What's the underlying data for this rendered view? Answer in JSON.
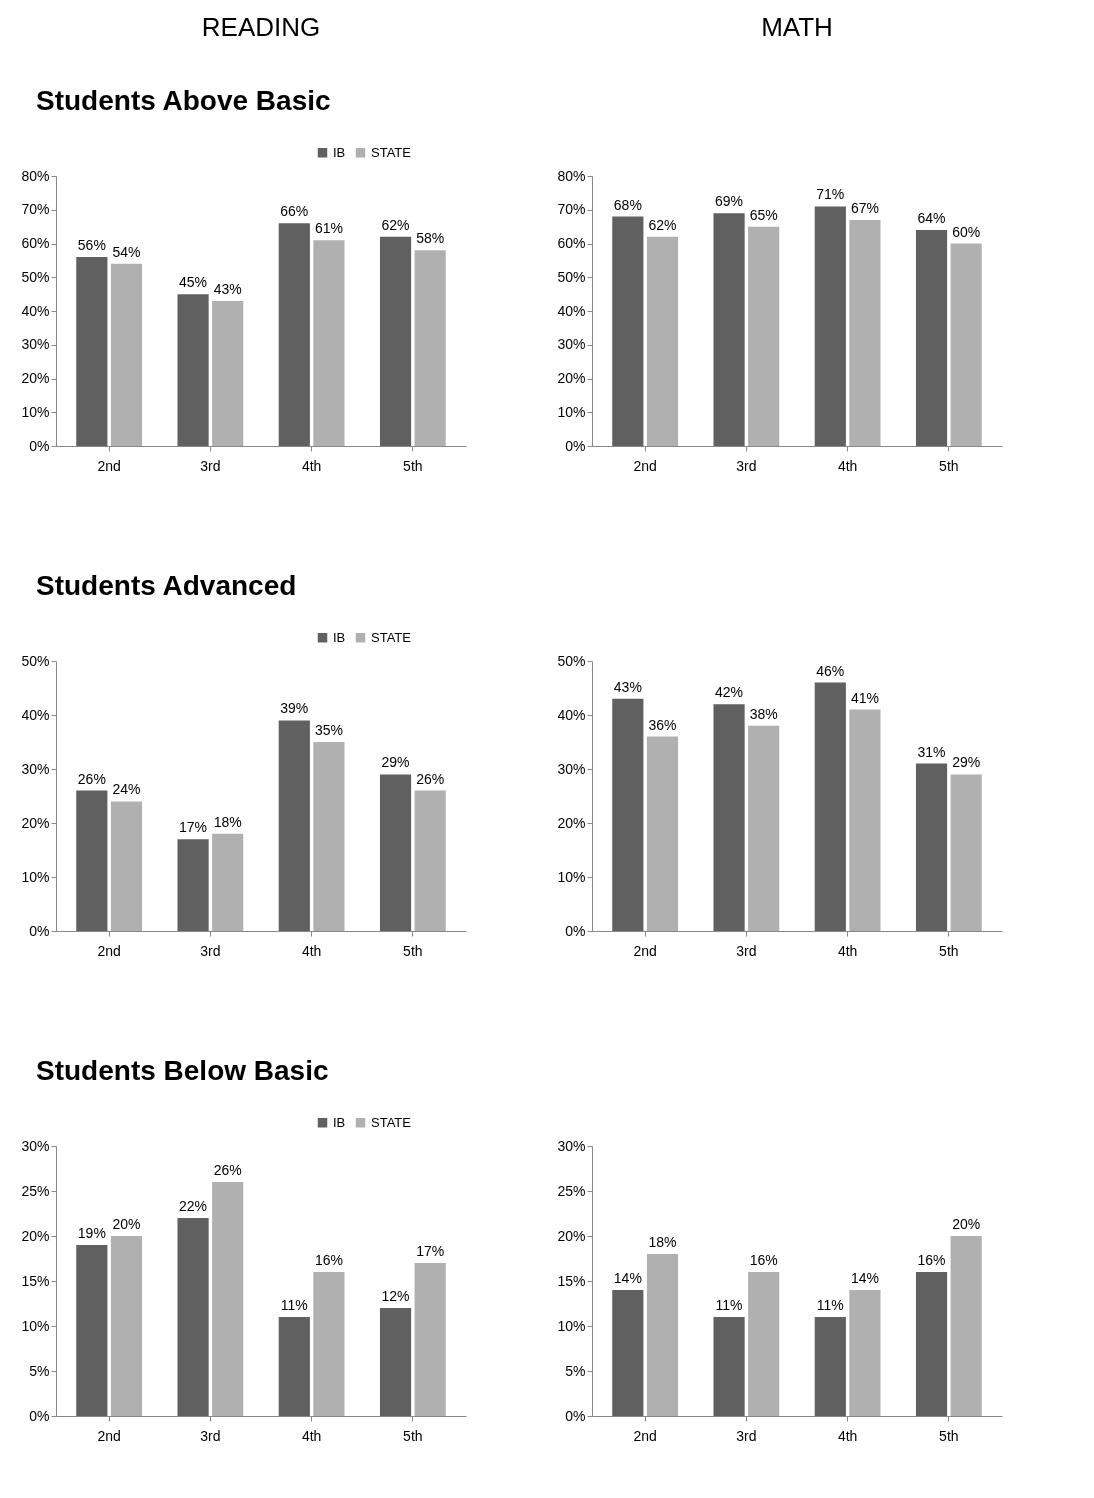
{
  "chart_data": [
    {
      "type": "bar",
      "title": "Students Above Basic",
      "annotations": [
        "READING"
      ],
      "categories": [
        "2nd",
        "3rd",
        "4th",
        "5th"
      ],
      "legend": "top right",
      "grid": false,
      "ylim": [
        0,
        80
      ],
      "yticks": [
        {
          "value": 0,
          "label": "0%"
        },
        {
          "value": 10,
          "label": "10%"
        },
        {
          "value": 20,
          "label": "20%"
        },
        {
          "value": 30,
          "label": "30%"
        },
        {
          "value": 40,
          "label": "40%"
        },
        {
          "value": 50,
          "label": "50%"
        },
        {
          "value": 60,
          "label": "60%"
        },
        {
          "value": 70,
          "label": "70%"
        },
        {
          "value": 80,
          "label": "80%"
        }
      ],
      "series": [
        {
          "name": "IB",
          "color": "#606060",
          "values": [
            56,
            45,
            66,
            62
          ],
          "value_labels": [
            "56%",
            "45%",
            "66%",
            "62%"
          ]
        },
        {
          "name": "STATE",
          "color": "#b0b0b0",
          "values": [
            54,
            43,
            61,
            58
          ],
          "value_labels": [
            "54%",
            "43%",
            "61%",
            "58%"
          ]
        }
      ]
    },
    {
      "type": "bar",
      "annotations": [
        "MATH"
      ],
      "categories": [
        "2nd",
        "3rd",
        "4th",
        "5th"
      ],
      "grid": false,
      "ylim": [
        0,
        80
      ],
      "yticks": [
        {
          "value": 0,
          "label": "0%"
        },
        {
          "value": 10,
          "label": "10%"
        },
        {
          "value": 20,
          "label": "20%"
        },
        {
          "value": 30,
          "label": "30%"
        },
        {
          "value": 40,
          "label": "40%"
        },
        {
          "value": 50,
          "label": "50%"
        },
        {
          "value": 60,
          "label": "60%"
        },
        {
          "value": 70,
          "label": "70%"
        },
        {
          "value": 80,
          "label": "80%"
        }
      ],
      "series": [
        {
          "color": "#606060",
          "values": [
            68,
            69,
            71,
            64
          ],
          "value_labels": [
            "68%",
            "69%",
            "71%",
            "64%"
          ]
        },
        {
          "color": "#b0b0b0",
          "values": [
            62,
            65,
            67,
            60
          ],
          "value_labels": [
            "62%",
            "65%",
            "67%",
            "60%"
          ]
        }
      ]
    },
    {
      "type": "bar",
      "title": "Students Advanced",
      "categories": [
        "2nd",
        "3rd",
        "4th",
        "5th"
      ],
      "legend": "top right",
      "grid": false,
      "ylim": [
        0,
        50
      ],
      "yticks": [
        {
          "value": 0,
          "label": "0%"
        },
        {
          "value": 10,
          "label": "10%"
        },
        {
          "value": 20,
          "label": "20%"
        },
        {
          "value": 30,
          "label": "30%"
        },
        {
          "value": 40,
          "label": "40%"
        },
        {
          "value": 50,
          "label": "50%"
        }
      ],
      "series": [
        {
          "name": "IB",
          "color": "#606060",
          "values": [
            26,
            17,
            39,
            29
          ],
          "value_labels": [
            "26%",
            "17%",
            "39%",
            "29%"
          ]
        },
        {
          "name": "STATE",
          "color": "#b0b0b0",
          "values": [
            24,
            18,
            35,
            26
          ],
          "value_labels": [
            "24%",
            "18%",
            "35%",
            "26%"
          ]
        }
      ]
    },
    {
      "type": "bar",
      "categories": [
        "2nd",
        "3rd",
        "4th",
        "5th"
      ],
      "grid": false,
      "ylim": [
        0,
        50
      ],
      "yticks": [
        {
          "value": 0,
          "label": "0%"
        },
        {
          "value": 10,
          "label": "10%"
        },
        {
          "value": 20,
          "label": "20%"
        },
        {
          "value": 30,
          "label": "30%"
        },
        {
          "value": 40,
          "label": "40%"
        },
        {
          "value": 50,
          "label": "50%"
        }
      ],
      "series": [
        {
          "color": "#606060",
          "values": [
            43,
            42,
            46,
            31
          ],
          "value_labels": [
            "43%",
            "42%",
            "46%",
            "31%"
          ]
        },
        {
          "color": "#b0b0b0",
          "values": [
            36,
            38,
            41,
            29
          ],
          "value_labels": [
            "36%",
            "38%",
            "41%",
            "29%"
          ]
        }
      ]
    },
    {
      "type": "bar",
      "title": "Students Below Basic",
      "categories": [
        "2nd",
        "3rd",
        "4th",
        "5th"
      ],
      "legend": "top right",
      "grid": false,
      "ylim": [
        0,
        30
      ],
      "yticks": [
        {
          "value": 0,
          "label": "0%"
        },
        {
          "value": 5,
          "label": "5%"
        },
        {
          "value": 10,
          "label": "10%"
        },
        {
          "value": 15,
          "label": "15%"
        },
        {
          "value": 20,
          "label": "20%"
        },
        {
          "value": 25,
          "label": "25%"
        },
        {
          "value": 30,
          "label": "30%"
        }
      ],
      "series": [
        {
          "name": "IB",
          "color": "#606060",
          "values": [
            19,
            22,
            11,
            12
          ],
          "value_labels": [
            "19%",
            "22%",
            "11%",
            "12%"
          ]
        },
        {
          "name": "STATE",
          "color": "#b0b0b0",
          "values": [
            20,
            26,
            16,
            17
          ],
          "value_labels": [
            "20%",
            "26%",
            "16%",
            "17%"
          ]
        }
      ]
    },
    {
      "type": "bar",
      "categories": [
        "2nd",
        "3rd",
        "4th",
        "5th"
      ],
      "grid": false,
      "ylim": [
        0,
        30
      ],
      "yticks": [
        {
          "value": 0,
          "label": "0%"
        },
        {
          "value": 5,
          "label": "5%"
        },
        {
          "value": 10,
          "label": "10%"
        },
        {
          "value": 15,
          "label": "15%"
        },
        {
          "value": 20,
          "label": "20%"
        },
        {
          "value": 25,
          "label": "25%"
        },
        {
          "value": 30,
          "label": "30%"
        }
      ],
      "series": [
        {
          "color": "#606060",
          "values": [
            14,
            11,
            11,
            16
          ],
          "value_labels": [
            "14%",
            "11%",
            "11%",
            "16%"
          ]
        },
        {
          "color": "#b0b0b0",
          "values": [
            18,
            16,
            14,
            20
          ],
          "value_labels": [
            "18%",
            "16%",
            "14%",
            "20%"
          ]
        }
      ]
    }
  ]
}
